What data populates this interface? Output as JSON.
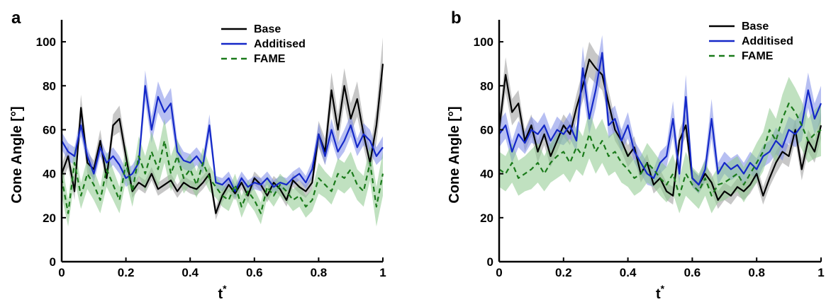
{
  "chart_data": [
    {
      "type": "line",
      "panel_label": "a",
      "xlabel": "t*",
      "ylabel": "Cone Angle [°]",
      "xlim": [
        0,
        1
      ],
      "ylim": [
        0,
        110
      ],
      "x_ticks": [
        "0",
        "0.2",
        "0.4",
        "0.6",
        "0.8",
        "1"
      ],
      "y_ticks": [
        "0",
        "20",
        "40",
        "60",
        "80",
        "100"
      ],
      "legend_position": "top-right",
      "x": [
        0,
        0.02,
        0.04,
        0.06,
        0.08,
        0.1,
        0.12,
        0.14,
        0.16,
        0.18,
        0.2,
        0.22,
        0.24,
        0.26,
        0.28,
        0.3,
        0.32,
        0.34,
        0.36,
        0.38,
        0.4,
        0.42,
        0.44,
        0.46,
        0.48,
        0.5,
        0.52,
        0.54,
        0.56,
        0.58,
        0.6,
        0.62,
        0.64,
        0.66,
        0.68,
        0.7,
        0.72,
        0.74,
        0.76,
        0.78,
        0.8,
        0.82,
        0.84,
        0.86,
        0.88,
        0.9,
        0.92,
        0.94,
        0.96,
        0.98,
        1
      ],
      "series": [
        {
          "name": "Base",
          "color": "#000000",
          "band": "#999999",
          "dash": "solid",
          "values": [
            40,
            48,
            32,
            70,
            45,
            42,
            55,
            38,
            62,
            65,
            48,
            32,
            36,
            34,
            40,
            33,
            35,
            37,
            32,
            36,
            34,
            33,
            36,
            40,
            22,
            30,
            35,
            31,
            36,
            30,
            38,
            35,
            30,
            36,
            33,
            28,
            37,
            34,
            32,
            36,
            58,
            50,
            78,
            60,
            80,
            65,
            74,
            58,
            45,
            62,
            90
          ],
          "spread": [
            4,
            5,
            4,
            6,
            5,
            4,
            5,
            4,
            5,
            6,
            5,
            3,
            3,
            3,
            3,
            3,
            3,
            3,
            3,
            3,
            3,
            3,
            3,
            3,
            3,
            3,
            3,
            3,
            3,
            3,
            3,
            3,
            3,
            3,
            3,
            3,
            3,
            3,
            3,
            3,
            6,
            6,
            8,
            7,
            8,
            7,
            8,
            6,
            6,
            8,
            12
          ]
        },
        {
          "name": "Additised",
          "color": "#1428c8",
          "band": "#7b8ae8",
          "dash": "solid",
          "values": [
            55,
            50,
            48,
            62,
            48,
            40,
            52,
            45,
            48,
            44,
            38,
            40,
            45,
            80,
            60,
            75,
            68,
            72,
            50,
            46,
            45,
            48,
            44,
            62,
            36,
            35,
            38,
            32,
            38,
            34,
            36,
            35,
            38,
            34,
            36,
            35,
            38,
            40,
            36,
            42,
            58,
            48,
            60,
            50,
            55,
            62,
            52,
            58,
            55,
            48,
            52
          ],
          "spread": [
            4,
            4,
            4,
            5,
            4,
            4,
            4,
            4,
            4,
            4,
            4,
            4,
            4,
            7,
            6,
            7,
            6,
            7,
            5,
            4,
            4,
            4,
            4,
            5,
            3,
            3,
            3,
            3,
            3,
            3,
            3,
            3,
            3,
            3,
            3,
            3,
            3,
            3,
            3,
            4,
            5,
            4,
            5,
            4,
            5,
            5,
            4,
            5,
            5,
            4,
            5
          ]
        },
        {
          "name": "FAME",
          "color": "#1a7a1a",
          "band": "#8cc98c",
          "dash": "dashed",
          "values": [
            38,
            22,
            45,
            30,
            40,
            35,
            28,
            42,
            35,
            28,
            45,
            32,
            48,
            40,
            50,
            42,
            55,
            40,
            48,
            38,
            42,
            35,
            45,
            38,
            34,
            30,
            28,
            35,
            25,
            32,
            28,
            22,
            34,
            30,
            35,
            32,
            28,
            30,
            25,
            28,
            38,
            35,
            32,
            40,
            38,
            42,
            35,
            32,
            45,
            25,
            40
          ],
          "spread": [
            8,
            6,
            8,
            6,
            7,
            7,
            6,
            8,
            7,
            6,
            8,
            7,
            9,
            8,
            9,
            8,
            10,
            8,
            8,
            7,
            7,
            6,
            7,
            6,
            5,
            5,
            5,
            5,
            5,
            5,
            5,
            5,
            5,
            5,
            5,
            5,
            5,
            5,
            5,
            5,
            7,
            6,
            6,
            7,
            7,
            8,
            7,
            7,
            8,
            9,
            10
          ]
        }
      ]
    },
    {
      "type": "line",
      "panel_label": "b",
      "xlabel": "t*",
      "ylabel": "Cone Angle [°]",
      "xlim": [
        0,
        1
      ],
      "ylim": [
        0,
        110
      ],
      "x_ticks": [
        "0",
        "0.2",
        "0.4",
        "0.6",
        "0.8",
        "1"
      ],
      "y_ticks": [
        "0",
        "20",
        "40",
        "60",
        "80",
        "100"
      ],
      "legend_position": "top-right",
      "x": [
        0,
        0.02,
        0.04,
        0.06,
        0.08,
        0.1,
        0.12,
        0.14,
        0.16,
        0.18,
        0.2,
        0.22,
        0.24,
        0.26,
        0.28,
        0.3,
        0.32,
        0.34,
        0.36,
        0.38,
        0.4,
        0.42,
        0.44,
        0.46,
        0.48,
        0.5,
        0.52,
        0.54,
        0.56,
        0.58,
        0.6,
        0.62,
        0.64,
        0.66,
        0.68,
        0.7,
        0.72,
        0.74,
        0.76,
        0.78,
        0.8,
        0.82,
        0.84,
        0.86,
        0.88,
        0.9,
        0.92,
        0.94,
        0.96,
        0.98,
        1
      ],
      "series": [
        {
          "name": "Base",
          "color": "#000000",
          "band": "#999999",
          "dash": "solid",
          "values": [
            60,
            85,
            68,
            72,
            55,
            62,
            50,
            58,
            48,
            55,
            62,
            58,
            70,
            80,
            92,
            88,
            85,
            72,
            60,
            55,
            48,
            52,
            40,
            45,
            35,
            38,
            32,
            30,
            55,
            62,
            38,
            35,
            40,
            36,
            28,
            32,
            30,
            34,
            32,
            35,
            40,
            30,
            38,
            45,
            50,
            48,
            60,
            42,
            55,
            50,
            62
          ],
          "spread": [
            6,
            8,
            6,
            6,
            5,
            5,
            5,
            5,
            5,
            5,
            5,
            5,
            6,
            7,
            8,
            7,
            7,
            6,
            5,
            5,
            5,
            5,
            4,
            4,
            4,
            4,
            4,
            4,
            5,
            5,
            4,
            4,
            4,
            4,
            4,
            4,
            4,
            4,
            4,
            4,
            4,
            4,
            4,
            5,
            5,
            5,
            5,
            5,
            5,
            5,
            6
          ]
        },
        {
          "name": "Additised",
          "color": "#1428c8",
          "band": "#7b8ae8",
          "dash": "solid",
          "values": [
            58,
            62,
            50,
            58,
            54,
            60,
            58,
            62,
            55,
            60,
            58,
            62,
            55,
            88,
            65,
            78,
            95,
            62,
            65,
            55,
            62,
            50,
            45,
            40,
            38,
            45,
            48,
            65,
            40,
            75,
            38,
            35,
            42,
            65,
            40,
            45,
            42,
            44,
            40,
            45,
            42,
            48,
            50,
            55,
            52,
            60,
            58,
            62,
            78,
            65,
            72
          ],
          "spread": [
            6,
            6,
            5,
            6,
            5,
            6,
            5,
            6,
            5,
            6,
            5,
            6,
            5,
            10,
            7,
            8,
            8,
            6,
            6,
            5,
            6,
            5,
            5,
            5,
            4,
            5,
            5,
            8,
            5,
            10,
            4,
            4,
            5,
            9,
            5,
            5,
            5,
            5,
            5,
            5,
            5,
            5,
            5,
            6,
            6,
            6,
            6,
            7,
            8,
            7,
            8
          ]
        },
        {
          "name": "FAME",
          "color": "#1a7a1a",
          "band": "#8cc98c",
          "dash": "dashed",
          "values": [
            42,
            40,
            45,
            38,
            40,
            42,
            45,
            40,
            45,
            48,
            50,
            45,
            52,
            48,
            58,
            50,
            55,
            48,
            50,
            45,
            42,
            38,
            40,
            45,
            42,
            38,
            35,
            40,
            30,
            40,
            35,
            32,
            38,
            30,
            35,
            36,
            38,
            40,
            35,
            40,
            45,
            50,
            60,
            55,
            65,
            72,
            68,
            62,
            55,
            58,
            60
          ],
          "spread": [
            8,
            8,
            9,
            8,
            8,
            9,
            9,
            8,
            9,
            10,
            10,
            9,
            10,
            9,
            11,
            10,
            10,
            9,
            9,
            9,
            8,
            8,
            8,
            9,
            8,
            8,
            8,
            9,
            8,
            10,
            8,
            8,
            8,
            8,
            8,
            8,
            8,
            8,
            8,
            8,
            9,
            9,
            10,
            10,
            11,
            12,
            11,
            11,
            10,
            11,
            12
          ]
        }
      ]
    }
  ]
}
